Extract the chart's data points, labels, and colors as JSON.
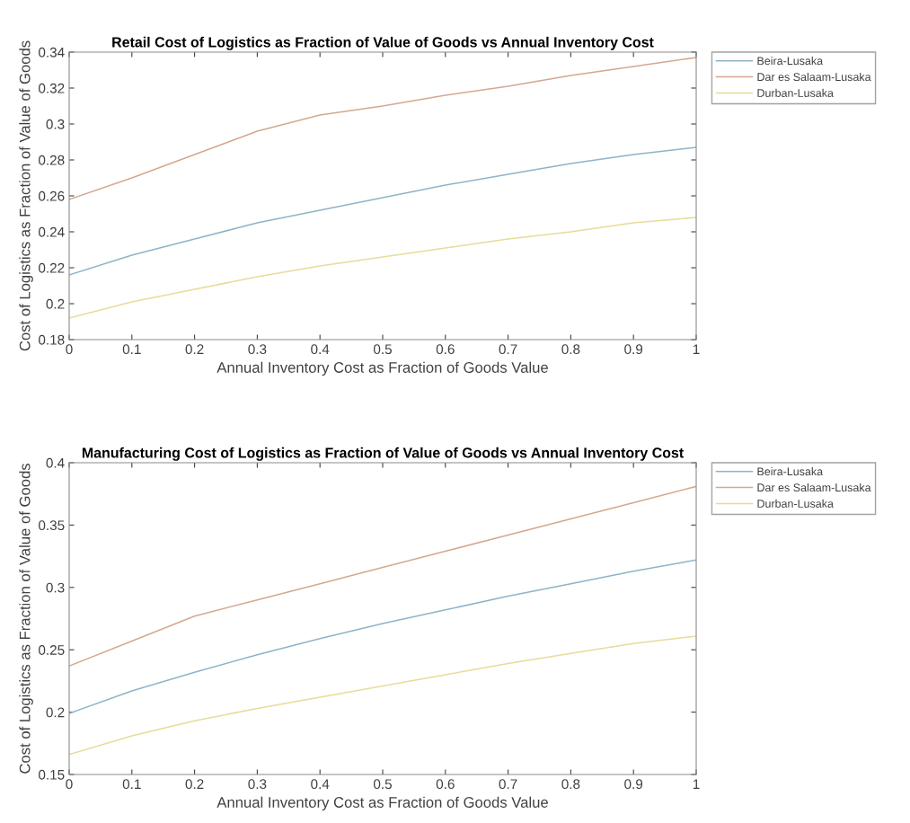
{
  "chart_data": [
    {
      "type": "line",
      "title": "Retail Cost of Logistics as Fraction of Value of Goods vs Annual Inventory Cost",
      "xlabel": "Annual Inventory Cost as Fraction of Goods Value",
      "ylabel": "Cost of Logistics as Fraction of Value of Goods",
      "x": [
        0,
        0.1,
        0.2,
        0.3,
        0.4,
        0.5,
        0.6,
        0.7,
        0.8,
        0.9,
        1
      ],
      "series": [
        {
          "name": "Beira-Lusaka",
          "color": "#8fb3c8",
          "values": [
            0.216,
            0.227,
            0.236,
            0.245,
            0.252,
            0.259,
            0.266,
            0.272,
            0.278,
            0.283,
            0.287
          ]
        },
        {
          "name": "Dar es Salaam-Lusaka",
          "color": "#d4a890",
          "values": [
            0.258,
            0.27,
            0.283,
            0.296,
            0.305,
            0.31,
            0.316,
            0.321,
            0.327,
            0.332,
            0.337
          ]
        },
        {
          "name": "Durban-Lusaka",
          "color": "#e6dc9a",
          "values": [
            0.192,
            0.201,
            0.208,
            0.215,
            0.221,
            0.226,
            0.231,
            0.236,
            0.24,
            0.245,
            0.248
          ]
        }
      ],
      "xlim": [
        0,
        1
      ],
      "xticks": [
        0,
        0.1,
        0.2,
        0.3,
        0.4,
        0.5,
        0.6,
        0.7,
        0.8,
        0.9,
        1
      ],
      "ylim": [
        0.18,
        0.34
      ],
      "yticks": [
        0.18,
        0.2,
        0.22,
        0.24,
        0.26,
        0.28,
        0.3,
        0.32,
        0.34
      ],
      "grid": false,
      "legend": "right"
    },
    {
      "type": "line",
      "title": "Manufacturing Cost of Logistics as Fraction of Value of Goods vs Annual Inventory Cost",
      "xlabel": "Annual Inventory Cost as Fraction of Goods Value",
      "ylabel": "Cost of Logistics as Fraction of Value of Goods",
      "x": [
        0,
        0.1,
        0.2,
        0.3,
        0.4,
        0.5,
        0.6,
        0.7,
        0.8,
        0.9,
        1
      ],
      "series": [
        {
          "name": "Beira-Lusaka",
          "color": "#8fb3c8",
          "values": [
            0.199,
            0.217,
            0.232,
            0.246,
            0.259,
            0.271,
            0.282,
            0.293,
            0.303,
            0.313,
            0.322
          ]
        },
        {
          "name": "Dar es Salaam-Lusaka",
          "color": "#d4a890",
          "values": [
            0.237,
            0.257,
            0.277,
            0.29,
            0.303,
            0.316,
            0.329,
            0.342,
            0.355,
            0.368,
            0.381
          ]
        },
        {
          "name": "Durban-Lusaka",
          "color": "#e6dc9a",
          "values": [
            0.166,
            0.181,
            0.193,
            0.203,
            0.212,
            0.221,
            0.23,
            0.239,
            0.247,
            0.255,
            0.261
          ]
        }
      ],
      "xlim": [
        0,
        1
      ],
      "xticks": [
        0,
        0.1,
        0.2,
        0.3,
        0.4,
        0.5,
        0.6,
        0.7,
        0.8,
        0.9,
        1
      ],
      "ylim": [
        0.15,
        0.4
      ],
      "yticks": [
        0.15,
        0.2,
        0.25,
        0.3,
        0.35,
        0.4
      ],
      "grid": false,
      "legend": "right"
    }
  ]
}
